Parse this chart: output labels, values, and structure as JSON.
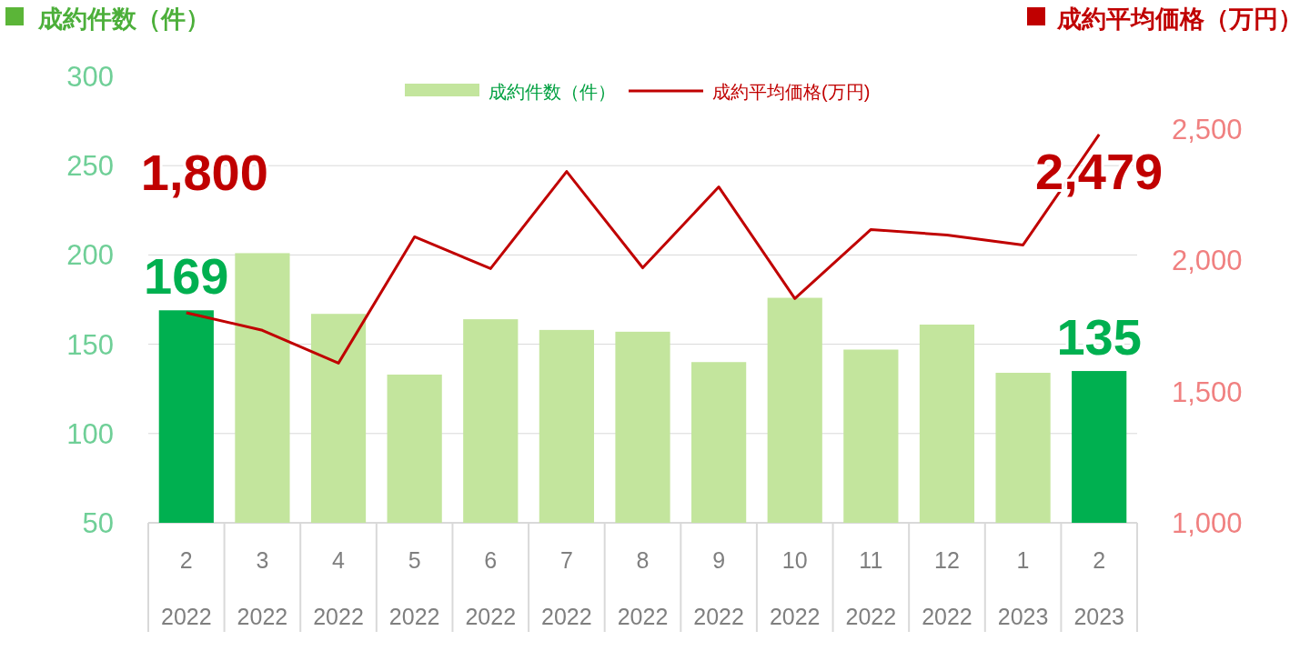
{
  "chart_data": {
    "type": "bar",
    "ylabel": "成約件数（件）",
    "y2label": "成約平均価格（万円）",
    "categories": [
      "2\n2022",
      "3\n2022",
      "4\n2022",
      "5\n2022",
      "6\n2022",
      "7\n2022",
      "8\n2022",
      "9\n2022",
      "10\n2022",
      "11\n2022",
      "12\n2022",
      "1\n2023",
      "2\n2023"
    ],
    "series": [
      {
        "name": "成約件数（件）",
        "color": "#c3e59d",
        "colors": [
          "#00b050",
          "#c3e59d",
          "#c3e59d",
          "#c3e59d",
          "#c3e59d",
          "#c3e59d",
          "#c3e59d",
          "#c3e59d",
          "#c3e59d",
          "#c3e59d",
          "#c3e59d",
          "#c3e59d",
          "#00b050"
        ],
        "values": [
          169,
          201,
          167,
          133,
          164,
          158,
          157,
          140,
          176,
          147,
          161,
          134,
          135
        ],
        "value_labels": [
          "169",
          null,
          null,
          null,
          null,
          null,
          null,
          null,
          null,
          null,
          null,
          null,
          "135"
        ]
      },
      {
        "name": "成約平均価格(万円)",
        "type": "line",
        "axis": "y2",
        "color": "#c00000",
        "values": [
          1800,
          1733,
          1608,
          2089,
          1968,
          2338,
          1971,
          2279,
          1854,
          2117,
          2096,
          2058,
          2479
        ],
        "value_labels": [
          "1,800",
          null,
          null,
          null,
          null,
          null,
          null,
          null,
          null,
          null,
          null,
          null,
          "2,479"
        ]
      }
    ],
    "ylim": [
      50,
      300
    ],
    "yticks": [
      50,
      100,
      150,
      200,
      250,
      300
    ],
    "y2lim": [
      1000,
      2700
    ],
    "y2ticks": [
      {
        "value": 1000,
        "label": "1,000"
      },
      {
        "value": 1500,
        "label": "1,500"
      },
      {
        "value": 2000,
        "label": "2,000"
      },
      {
        "value": 2500,
        "label": "2,500"
      }
    ],
    "grid": "y",
    "legend": "top",
    "marker": "none",
    "line_style": "solid"
  }
}
